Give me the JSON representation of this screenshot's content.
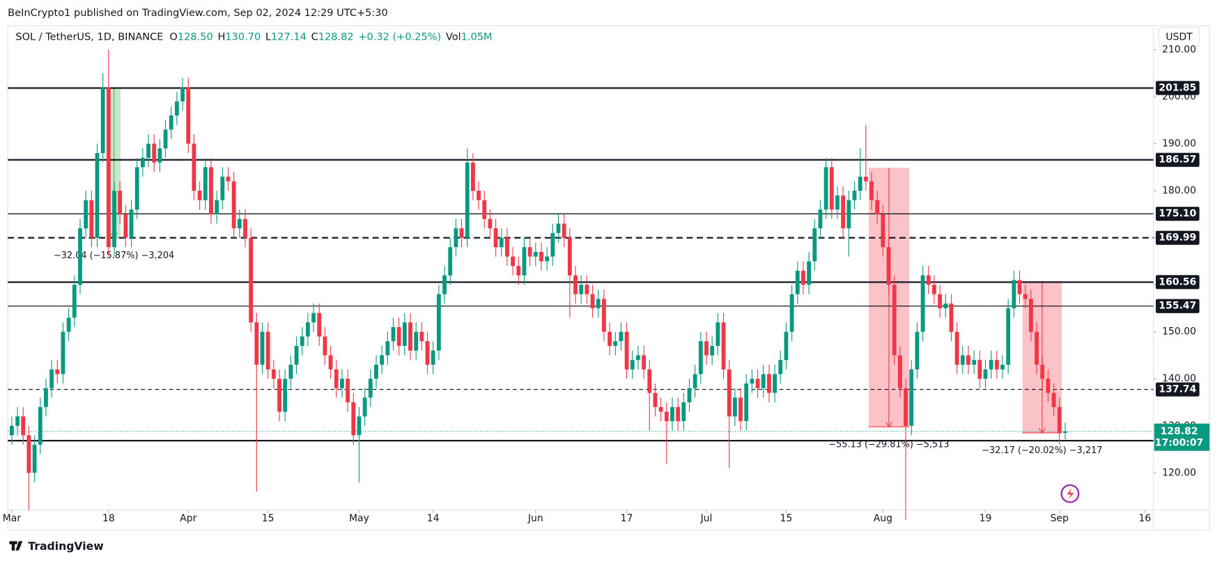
{
  "published": "BeInCrypto1 published on TradingView.com, Sep 02, 2024 12:29 UTC+5:30",
  "brand": "TradingView",
  "currency": "USDT",
  "header": {
    "symbol": "SOL / TetherUS, 1D, BINANCE",
    "o_label": "O",
    "open": "128.50",
    "h_label": "H",
    "high": "130.70",
    "l_label": "L",
    "low": "127.14",
    "c_label": "C",
    "close": "128.82",
    "change": "+0.32 (+0.25%)",
    "vol_label": "Vol",
    "volume": "1.05M"
  },
  "chart_data": {
    "type": "candlestick",
    "up_color": "#089981",
    "down_color": "#f23645",
    "xlim": [
      -0.7,
      200.5
    ],
    "ylim": [
      112.1,
      210.3
    ],
    "xticks": [
      {
        "value": 0,
        "label": "Mar"
      },
      {
        "value": 17,
        "label": "18"
      },
      {
        "value": 31,
        "label": "Apr"
      },
      {
        "value": 45,
        "label": "15"
      },
      {
        "value": 61,
        "label": "May"
      },
      {
        "value": 74,
        "label": "14"
      },
      {
        "value": 92,
        "label": "Jun"
      },
      {
        "value": 108,
        "label": "17"
      },
      {
        "value": 122,
        "label": "Jul"
      },
      {
        "value": 136,
        "label": "15"
      },
      {
        "value": 153,
        "label": "Aug"
      },
      {
        "value": 171,
        "label": "19"
      },
      {
        "value": 184,
        "label": "Sep"
      },
      {
        "value": 199,
        "label": "16"
      }
    ],
    "yticks": [
      {
        "value": 120,
        "label": "120.00"
      },
      {
        "value": 130,
        "label": "130.00"
      },
      {
        "value": 140,
        "label": "140.00"
      },
      {
        "value": 150,
        "label": "150.00"
      },
      {
        "value": 160,
        "label": "160.00"
      },
      {
        "value": 170,
        "label": "170.00"
      },
      {
        "value": 180,
        "label": "180.00"
      },
      {
        "value": 190,
        "label": "190.00"
      },
      {
        "value": 200,
        "label": "200.00"
      },
      {
        "value": 210,
        "label": "210.00"
      }
    ],
    "levels": [
      {
        "price": 201.85,
        "style": "solid-thick"
      },
      {
        "price": 186.57,
        "style": "solid-thick"
      },
      {
        "price": {
          "value": 175.1,
          "label": "175.10"
        },
        "style": "solid"
      },
      {
        "price": 169.99,
        "style": "dashed-thick"
      },
      {
        "price": 160.56,
        "style": "solid-thick"
      },
      {
        "price": 155.47,
        "style": "solid"
      },
      {
        "price": 137.74,
        "style": "dashed"
      },
      {
        "price": 126.85,
        "style": "solid-thick"
      }
    ],
    "last_price": 128.82,
    "countdown": "17:00:07",
    "last_color": "#089981",
    "measures": [
      {
        "label": "−32.04 (−15.87%) −3,204",
        "x": [
          16.8,
          19.1
        ],
        "y": [
          201.8,
          170
        ],
        "color": "#4caf50"
      },
      {
        "label": "−55.13 (−29.81%) −5,513",
        "x": [
          150.5,
          157.6
        ],
        "y": [
          184.9,
          129.8
        ],
        "color": "#f23645"
      },
      {
        "label": "−32.17 (−20.02%) −3,217",
        "x": [
          177.5,
          184.4
        ],
        "y": [
          160.8,
          128.5
        ],
        "color": "#f23645"
      }
    ],
    "ohlc": [
      [
        128,
        132,
        126,
        130
      ],
      [
        130,
        134,
        128,
        132
      ],
      [
        132,
        134,
        126,
        128
      ],
      [
        128,
        130,
        112,
        120
      ],
      [
        120,
        128,
        118,
        126
      ],
      [
        126,
        136,
        124,
        134
      ],
      [
        134,
        140,
        132,
        138
      ],
      [
        138,
        144,
        136,
        142
      ],
      [
        142,
        144,
        139,
        141
      ],
      [
        141,
        152,
        139,
        150
      ],
      [
        150,
        155,
        148,
        153
      ],
      [
        153,
        162,
        151,
        160
      ],
      [
        160,
        174,
        158,
        172
      ],
      [
        172,
        180,
        170,
        178
      ],
      [
        178,
        180,
        168,
        170
      ],
      [
        170,
        190,
        168,
        188
      ],
      [
        188,
        205,
        186,
        202
      ],
      [
        202,
        210,
        166,
        168
      ],
      [
        168,
        182,
        166,
        180
      ],
      [
        180,
        182,
        173,
        175
      ],
      [
        175,
        177,
        168,
        170
      ],
      [
        170,
        178,
        168,
        176
      ],
      [
        176,
        187,
        174,
        185
      ],
      [
        185,
        189,
        183,
        187
      ],
      [
        187,
        192,
        185,
        190
      ],
      [
        190,
        192,
        184,
        186
      ],
      [
        186,
        191,
        184,
        189
      ],
      [
        189,
        195,
        187,
        193
      ],
      [
        193,
        198,
        191,
        196
      ],
      [
        196,
        201,
        194,
        199
      ],
      [
        199,
        204,
        197,
        202
      ],
      [
        202,
        204,
        188,
        190
      ],
      [
        190,
        192,
        178,
        180
      ],
      [
        180,
        182,
        176,
        178
      ],
      [
        178,
        187,
        176,
        185
      ],
      [
        185,
        187,
        173,
        175
      ],
      [
        175,
        180,
        173,
        178
      ],
      [
        178,
        185,
        176,
        183
      ],
      [
        183,
        185,
        180,
        182
      ],
      [
        182,
        184,
        170,
        172
      ],
      [
        172,
        176,
        170,
        174
      ],
      [
        174,
        176,
        168,
        170
      ],
      [
        170,
        172,
        150,
        152
      ],
      [
        152,
        154,
        116,
        143
      ],
      [
        143,
        152,
        141,
        150
      ],
      [
        150,
        152,
        140,
        142
      ],
      [
        142,
        144,
        138,
        140
      ],
      [
        140,
        142,
        131,
        133
      ],
      [
        133,
        142,
        131,
        140
      ],
      [
        140,
        145,
        138,
        143
      ],
      [
        143,
        149,
        141,
        147
      ],
      [
        147,
        151,
        145,
        149
      ],
      [
        149,
        154,
        147,
        152
      ],
      [
        152,
        156,
        150,
        154
      ],
      [
        154,
        156,
        147,
        149
      ],
      [
        149,
        151,
        143,
        145
      ],
      [
        145,
        147,
        140,
        142
      ],
      [
        142,
        144,
        136,
        138
      ],
      [
        138,
        142,
        136,
        140
      ],
      [
        140,
        142,
        133,
        135
      ],
      [
        135,
        137,
        126,
        128
      ],
      [
        128,
        134,
        118,
        132
      ],
      [
        132,
        138,
        130,
        136
      ],
      [
        136,
        142,
        134,
        140
      ],
      [
        140,
        145,
        138,
        143
      ],
      [
        143,
        147,
        141,
        145
      ],
      [
        145,
        150,
        143,
        148
      ],
      [
        148,
        153,
        146,
        151
      ],
      [
        151,
        153,
        145,
        147
      ],
      [
        147,
        154,
        145,
        152
      ],
      [
        152,
        154,
        144,
        146
      ],
      [
        146,
        152,
        144,
        150
      ],
      [
        150,
        152,
        146,
        148
      ],
      [
        148,
        150,
        141,
        143
      ],
      [
        143,
        148,
        141,
        146
      ],
      [
        146,
        160,
        144,
        158
      ],
      [
        158,
        164,
        156,
        162
      ],
      [
        162,
        170,
        160,
        168
      ],
      [
        168,
        174,
        166,
        172
      ],
      [
        172,
        174,
        168,
        170
      ],
      [
        170,
        189,
        168,
        186
      ],
      [
        186,
        188,
        178,
        180
      ],
      [
        180,
        182,
        176,
        178
      ],
      [
        178,
        180,
        172,
        174
      ],
      [
        174,
        176,
        170,
        172
      ],
      [
        172,
        174,
        166,
        168
      ],
      [
        168,
        172,
        166,
        170
      ],
      [
        170,
        172,
        164,
        166
      ],
      [
        166,
        168,
        162,
        164
      ],
      [
        164,
        166,
        160,
        162
      ],
      [
        162,
        170,
        160,
        168
      ],
      [
        168,
        170,
        164,
        166
      ],
      [
        166,
        169,
        164,
        167
      ],
      [
        167,
        169,
        163,
        165
      ],
      [
        165,
        168,
        163,
        166
      ],
      [
        166,
        173,
        164,
        171
      ],
      [
        171,
        175,
        169,
        173
      ],
      [
        173,
        175,
        168,
        170
      ],
      [
        170,
        172,
        153,
        162
      ],
      [
        162,
        164,
        156,
        158
      ],
      [
        158,
        162,
        156,
        160
      ],
      [
        160,
        162,
        156,
        158
      ],
      [
        158,
        160,
        153,
        155
      ],
      [
        155,
        159,
        153,
        157
      ],
      [
        157,
        159,
        148,
        150
      ],
      [
        150,
        152,
        145,
        147
      ],
      [
        147,
        150,
        145,
        148
      ],
      [
        148,
        152,
        146,
        150
      ],
      [
        150,
        152,
        140,
        142
      ],
      [
        142,
        146,
        140,
        144
      ],
      [
        144,
        147,
        142,
        145
      ],
      [
        145,
        147,
        140,
        142
      ],
      [
        142,
        144,
        129,
        137
      ],
      [
        137,
        139,
        132,
        134
      ],
      [
        134,
        136,
        131,
        133
      ],
      [
        133,
        135,
        122,
        131
      ],
      [
        131,
        136,
        129,
        134
      ],
      [
        134,
        136,
        129,
        131
      ],
      [
        131,
        137,
        129,
        135
      ],
      [
        135,
        140,
        133,
        138
      ],
      [
        138,
        143,
        136,
        141
      ],
      [
        141,
        150,
        139,
        148
      ],
      [
        148,
        150,
        143,
        145
      ],
      [
        145,
        149,
        143,
        147
      ],
      [
        147,
        154,
        145,
        152
      ],
      [
        152,
        154,
        140,
        142
      ],
      [
        142,
        144,
        121,
        132
      ],
      [
        132,
        138,
        130,
        136
      ],
      [
        136,
        138,
        129,
        131
      ],
      [
        131,
        141,
        129,
        139
      ],
      [
        139,
        142,
        137,
        140
      ],
      [
        140,
        142,
        136,
        138
      ],
      [
        138,
        143,
        136,
        141
      ],
      [
        141,
        143,
        135,
        137
      ],
      [
        137,
        143,
        135,
        141
      ],
      [
        141,
        146,
        139,
        144
      ],
      [
        144,
        152,
        142,
        150
      ],
      [
        150,
        160,
        148,
        158
      ],
      [
        158,
        165,
        156,
        163
      ],
      [
        163,
        165,
        158,
        160
      ],
      [
        160,
        167,
        158,
        165
      ],
      [
        165,
        174,
        163,
        172
      ],
      [
        172,
        178,
        170,
        176
      ],
      [
        176,
        187,
        174,
        185
      ],
      [
        185,
        187,
        174,
        176
      ],
      [
        176,
        181,
        174,
        179
      ],
      [
        179,
        181,
        170,
        172
      ],
      [
        172,
        180,
        166,
        178
      ],
      [
        178,
        182,
        176,
        180
      ],
      [
        180,
        189,
        178,
        183
      ],
      [
        183,
        194,
        180,
        182
      ],
      [
        182,
        184,
        176,
        178
      ],
      [
        178,
        180,
        173,
        175
      ],
      [
        175,
        177,
        166,
        168
      ],
      [
        168,
        170,
        158,
        160
      ],
      [
        160,
        162,
        143,
        145
      ],
      [
        145,
        147,
        136,
        138
      ],
      [
        138,
        140,
        110,
        130
      ],
      [
        130,
        144,
        128,
        142
      ],
      [
        142,
        152,
        140,
        150
      ],
      [
        150,
        164,
        148,
        162
      ],
      [
        162,
        164,
        158,
        160
      ],
      [
        160,
        162,
        156,
        158
      ],
      [
        158,
        160,
        153,
        155
      ],
      [
        155,
        158,
        153,
        156
      ],
      [
        156,
        158,
        148,
        150
      ],
      [
        150,
        152,
        141,
        143
      ],
      [
        143,
        147,
        141,
        145
      ],
      [
        145,
        147,
        141,
        143
      ],
      [
        143,
        146,
        141,
        144
      ],
      [
        144,
        146,
        138,
        140
      ],
      [
        140,
        144,
        138,
        142
      ],
      [
        142,
        146,
        140,
        144
      ],
      [
        144,
        146,
        140,
        142
      ],
      [
        142,
        145,
        140,
        143
      ],
      [
        143,
        157,
        141,
        155
      ],
      [
        155,
        163,
        153,
        161
      ],
      [
        161,
        163,
        156,
        158
      ],
      [
        158,
        160,
        155,
        157
      ],
      [
        157,
        159,
        148,
        150
      ],
      [
        150,
        152,
        141,
        143
      ],
      [
        143,
        145,
        138,
        140
      ],
      [
        140,
        142,
        135,
        137
      ],
      [
        137,
        139,
        132,
        134
      ],
      [
        134,
        136,
        126,
        128.5
      ],
      [
        128.5,
        130.7,
        127.14,
        128.82
      ]
    ]
  }
}
